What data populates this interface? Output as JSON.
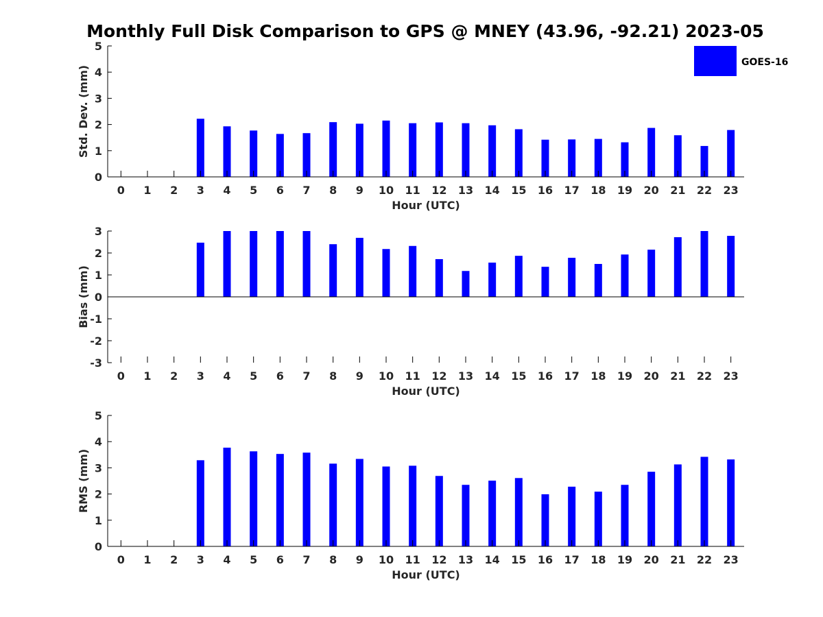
{
  "title": "Monthly Full Disk Comparison to GPS @ MNEY (43.96, -92.21) 2023-05",
  "legend": {
    "label": "GOES-16",
    "color": "#0000FF",
    "placement": "top-right"
  },
  "chart_data": [
    {
      "type": "bar",
      "series_name": "GOES-16",
      "categories": [
        "0",
        "1",
        "2",
        "3",
        "4",
        "5",
        "6",
        "7",
        "8",
        "9",
        "10",
        "11",
        "12",
        "13",
        "14",
        "15",
        "16",
        "17",
        "18",
        "19",
        "20",
        "21",
        "22",
        "23"
      ],
      "values": [
        null,
        null,
        null,
        2.22,
        1.93,
        1.77,
        1.64,
        1.67,
        2.09,
        2.03,
        2.15,
        2.05,
        2.08,
        2.05,
        1.97,
        1.82,
        1.42,
        1.43,
        1.45,
        1.32,
        1.87,
        1.59,
        1.18,
        1.79
      ],
      "xlabel": "Hour (UTC)",
      "ylabel": "Std. Dev. (mm)",
      "ylim": [
        0,
        5
      ],
      "yticks": [
        "0",
        "1",
        "2",
        "3",
        "4",
        "5"
      ],
      "grid": false
    },
    {
      "type": "bar",
      "series_name": "GOES-16",
      "categories": [
        "0",
        "1",
        "2",
        "3",
        "4",
        "5",
        "6",
        "7",
        "8",
        "9",
        "10",
        "11",
        "12",
        "13",
        "14",
        "15",
        "16",
        "17",
        "18",
        "19",
        "20",
        "21",
        "22",
        "23"
      ],
      "values": [
        null,
        null,
        null,
        2.47,
        3.0,
        3.0,
        3.0,
        3.0,
        2.4,
        2.69,
        2.18,
        2.32,
        1.72,
        1.18,
        1.56,
        1.87,
        1.37,
        1.78,
        1.5,
        1.93,
        2.15,
        2.72,
        3.0,
        2.78
      ],
      "xlabel": "Hour (UTC)",
      "ylabel": "Bias (mm)",
      "ylim": [
        -3,
        3
      ],
      "yticks": [
        "-3",
        "-2",
        "-1",
        "0",
        "1",
        "2",
        "3"
      ],
      "grid": false
    },
    {
      "type": "bar",
      "series_name": "GOES-16",
      "categories": [
        "0",
        "1",
        "2",
        "3",
        "4",
        "5",
        "6",
        "7",
        "8",
        "9",
        "10",
        "11",
        "12",
        "13",
        "14",
        "15",
        "16",
        "17",
        "18",
        "19",
        "20",
        "21",
        "22",
        "23"
      ],
      "values": [
        null,
        null,
        null,
        3.29,
        3.77,
        3.63,
        3.53,
        3.58,
        3.16,
        3.34,
        3.05,
        3.08,
        2.69,
        2.35,
        2.51,
        2.61,
        1.99,
        2.28,
        2.09,
        2.35,
        2.85,
        3.13,
        3.42,
        3.32
      ],
      "xlabel": "Hour (UTC)",
      "ylabel": "RMS (mm)",
      "ylim": [
        0,
        5
      ],
      "yticks": [
        "0",
        "1",
        "2",
        "3",
        "4",
        "5"
      ],
      "grid": false
    }
  ]
}
